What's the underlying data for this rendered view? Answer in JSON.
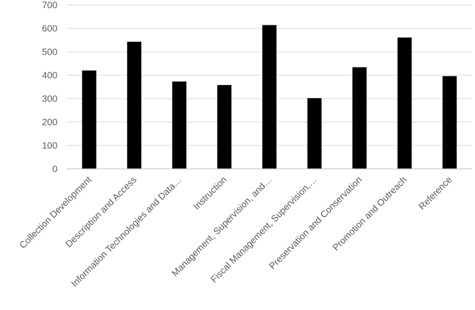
{
  "chart_data": {
    "type": "bar",
    "title": "",
    "xlabel": "",
    "ylabel": "",
    "ylim": [
      0,
      700
    ],
    "yticks": [
      0,
      100,
      200,
      300,
      400,
      500,
      600,
      700
    ],
    "grid": true,
    "legend": "none",
    "bar_color": "#000000",
    "categories": [
      "Collection Development",
      "Description and Access",
      "Information Technologies and Data…",
      "Instruction",
      "Management, Supervision, and…",
      "Fiscal Management, Supervision,…",
      "Preservation and Conservation",
      "Promotion and Outreach",
      "Reference"
    ],
    "values": [
      420,
      543,
      373,
      358,
      614,
      302,
      434,
      561,
      396
    ]
  }
}
